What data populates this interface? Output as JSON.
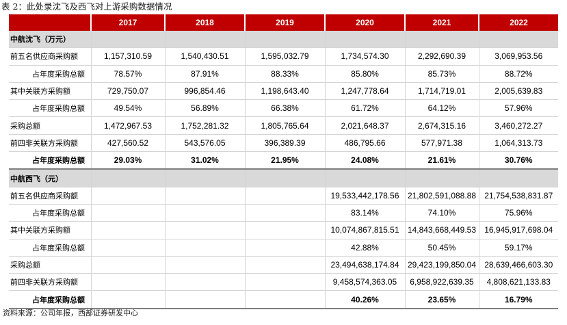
{
  "caption": "表 2：此处录沈飞及西飞对上游采购数据情况",
  "table": {
    "header": [
      "",
      "2017",
      "2018",
      "2019",
      "2020",
      "2021",
      "2022"
    ],
    "sections": [
      {
        "title": "中航沈飞（万元）",
        "rows": [
          {
            "label": "前五名供应商采购额",
            "values": [
              "1,157,310.59",
              "1,540,430.51",
              "1,595,032.79",
              "1,734,574.30",
              "2,292,690.39",
              "3,069,953.56"
            ]
          },
          {
            "label": "占年度采购总额",
            "values": [
              "78.57%",
              "87.91%",
              "88.33%",
              "85.80%",
              "85.73%",
              "88.72%"
            ]
          },
          {
            "label": "其中关联方采购额",
            "values": [
              "729,750.07",
              "996,854.46",
              "1,198,643.40",
              "1,247,778.64",
              "1,714,719.01",
              "2,005,639.83"
            ]
          },
          {
            "label": "占年度采购总额",
            "values": [
              "49.54%",
              "56.89%",
              "66.38%",
              "61.72%",
              "64.12%",
              "57.96%"
            ]
          },
          {
            "label": "采购总额",
            "values": [
              "1,472,967.53",
              "1,752,281.32",
              "1,805,765.64",
              "2,021,648.37",
              "2,674,315.16",
              "3,460,272.27"
            ]
          },
          {
            "label": "前四非关联方采购额",
            "values": [
              "427,560.52",
              "543,576.05",
              "396,389.39",
              "486,795.66",
              "577,971.38",
              "1,064,313.73"
            ]
          },
          {
            "label": "占年度采购总额",
            "values": [
              "29.03%",
              "31.02%",
              "21.95%",
              "24.08%",
              "21.61%",
              "30.76%"
            ]
          }
        ]
      },
      {
        "title": "中航西飞（元）",
        "rows": [
          {
            "label": "前五名供应商采购额",
            "values": [
              "",
              "",
              "",
              "19,533,442,178.56",
              "21,802,591,088.88",
              "21,754,538,831.87"
            ]
          },
          {
            "label": "占年度采购总额",
            "values": [
              "",
              "",
              "",
              "83.14%",
              "74.10%",
              "75.96%"
            ]
          },
          {
            "label": "其中关联方采购额",
            "values": [
              "",
              "",
              "",
              "10,074,867,815.51",
              "14,843,668,449.53",
              "16,945,917,698.04"
            ]
          },
          {
            "label": "占年度采购总额",
            "values": [
              "",
              "",
              "",
              "42.88%",
              "50.45%",
              "59.17%"
            ]
          },
          {
            "label": "采购总额",
            "values": [
              "",
              "",
              "",
              "23,494,638,174.84",
              "29,423,199,850.04",
              "28,639,466,603.30"
            ]
          },
          {
            "label": "前四非关联方采购额",
            "values": [
              "",
              "",
              "",
              "9,458,574,363.05",
              "6,958,922,639.35",
              "4,808,621,133.83"
            ]
          },
          {
            "label": "占年度采购总额",
            "values": [
              "",
              "",
              "",
              "40.26%",
              "23.65%",
              "16.79%"
            ]
          }
        ]
      }
    ]
  },
  "source": "资料来源：公司年报，西部证券研发中心"
}
